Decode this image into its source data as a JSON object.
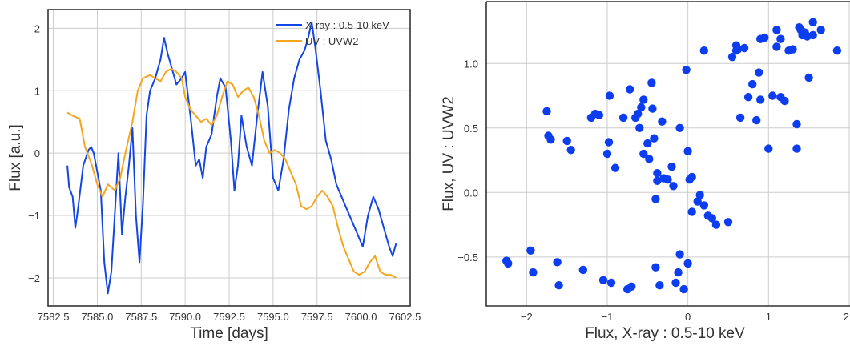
{
  "chart_data": [
    {
      "type": "line",
      "xlabel": "Time [days]",
      "ylabel": "Flux [a.u.]",
      "xlim": [
        7582.2,
        7602.8
      ],
      "ylim": [
        -2.45,
        2.3
      ],
      "xticks": [
        7582.5,
        7585.0,
        7587.5,
        7590.0,
        7592.5,
        7595.0,
        7597.5,
        7600.0,
        7602.5
      ],
      "xtick_labels": [
        "7582.5",
        "7585.0",
        "7587.5",
        "7590.0",
        "7592.5",
        "7595.0",
        "7597.5",
        "7600.0",
        "7602.5"
      ],
      "yticks": [
        -2,
        -1,
        0,
        1,
        2
      ],
      "ytick_labels": [
        "−2",
        "−1",
        "0",
        "1",
        "2"
      ],
      "grid": true,
      "legend": "top-right",
      "series": [
        {
          "name": "X-ray : 0.5-10 keV",
          "color": "#1446e6",
          "x": [
            7583.3,
            7583.4,
            7583.6,
            7583.75,
            7583.9,
            7584.2,
            7584.5,
            7584.65,
            7584.8,
            7585.0,
            7585.2,
            7585.4,
            7585.6,
            7585.8,
            7585.95,
            7586.2,
            7586.4,
            7586.6,
            7586.8,
            7587.0,
            7587.2,
            7587.4,
            7587.6,
            7587.8,
            7588.0,
            7588.3,
            7588.6,
            7588.8,
            7589.0,
            7589.3,
            7589.5,
            7589.8,
            7590.0,
            7590.3,
            7590.6,
            7590.8,
            7591.0,
            7591.2,
            7591.5,
            7591.8,
            7592.0,
            7592.3,
            7592.6,
            7592.8,
            7593.0,
            7593.2,
            7593.5,
            7593.8,
            7594.1,
            7594.4,
            7594.7,
            7595.0,
            7595.3,
            7595.6,
            7595.9,
            7596.2,
            7596.5,
            7596.8,
            7597.0,
            7597.2,
            7597.4,
            7597.7,
            7598.0,
            7598.3,
            7598.6,
            7598.9,
            7599.2,
            7599.5,
            7599.8,
            7600.1,
            7600.4,
            7600.7,
            7601.0,
            7601.3,
            7601.6,
            7601.8,
            7602.0
          ],
          "y": [
            -0.2,
            -0.55,
            -0.7,
            -1.2,
            -0.9,
            -0.2,
            0.05,
            0.1,
            0.0,
            -0.3,
            -0.6,
            -1.75,
            -2.25,
            -1.9,
            -1.2,
            0.0,
            -1.3,
            -0.7,
            -0.2,
            0.4,
            -1.0,
            -1.75,
            -0.8,
            0.6,
            1.0,
            1.2,
            1.5,
            1.85,
            1.6,
            1.3,
            1.1,
            1.2,
            1.3,
            0.6,
            -0.2,
            -0.1,
            -0.4,
            0.1,
            0.3,
            0.9,
            1.2,
            1.05,
            0.2,
            -0.6,
            -0.2,
            0.6,
            0.1,
            -0.2,
            0.6,
            1.3,
            0.75,
            -0.4,
            -0.6,
            -0.1,
            0.7,
            1.2,
            1.5,
            1.65,
            1.85,
            2.1,
            1.7,
            1.0,
            0.2,
            -0.1,
            -0.5,
            -0.7,
            -0.9,
            -1.1,
            -1.3,
            -1.5,
            -1.0,
            -0.7,
            -0.9,
            -1.2,
            -1.5,
            -1.65,
            -1.45
          ]
        },
        {
          "name": "UV : UVW2",
          "color": "#f5a61e",
          "x": [
            7583.3,
            7583.6,
            7584.0,
            7584.3,
            7584.7,
            7585.0,
            7585.3,
            7585.6,
            7586.0,
            7586.3,
            7586.6,
            7587.0,
            7587.3,
            7587.6,
            7588.0,
            7588.3,
            7588.6,
            7588.9,
            7589.2,
            7589.5,
            7589.8,
            7590.0,
            7590.3,
            7590.6,
            7590.9,
            7591.2,
            7591.5,
            7591.8,
            7592.1,
            7592.4,
            7592.7,
            7593.0,
            7593.3,
            7593.6,
            7593.9,
            7594.2,
            7594.5,
            7594.8,
            7595.1,
            7595.4,
            7595.7,
            7596.0,
            7596.3,
            7596.6,
            7596.9,
            7597.2,
            7597.5,
            7597.8,
            7598.1,
            7598.4,
            7598.7,
            7599.0,
            7599.3,
            7599.6,
            7599.9,
            7600.2,
            7600.5,
            7600.8,
            7601.1,
            7601.4,
            7601.7,
            7602.0
          ],
          "y": [
            0.65,
            0.6,
            0.55,
            0.1,
            -0.2,
            -0.5,
            -0.7,
            -0.5,
            -0.6,
            -0.4,
            0.0,
            0.5,
            1.0,
            1.2,
            1.25,
            1.2,
            1.15,
            1.3,
            1.35,
            1.3,
            1.2,
            0.9,
            0.7,
            0.6,
            0.5,
            0.55,
            0.45,
            0.6,
            0.9,
            1.15,
            1.1,
            0.9,
            1.0,
            1.05,
            0.9,
            0.6,
            0.2,
            0.0,
            0.05,
            0.0,
            -0.1,
            -0.3,
            -0.5,
            -0.85,
            -0.9,
            -0.85,
            -0.7,
            -0.6,
            -0.7,
            -0.85,
            -1.2,
            -1.5,
            -1.7,
            -1.9,
            -1.95,
            -1.9,
            -1.75,
            -1.65,
            -1.9,
            -1.95,
            -1.95,
            -2.0
          ]
        }
      ]
    },
    {
      "type": "scatter",
      "xlabel": "Flux, X-ray : 0.5-10 keV",
      "ylabel": "Flux, UV : UVW2",
      "xlim": [
        -2.5,
        2.05
      ],
      "ylim": [
        -0.88,
        1.48
      ],
      "xticks": [
        -2,
        -1,
        0,
        1,
        2
      ],
      "xtick_labels": [
        "−2",
        "−1",
        "0",
        "1",
        "2"
      ],
      "yticks": [
        -0.5,
        0.0,
        0.5,
        1.0
      ],
      "ytick_labels": [
        "−0.5",
        "0.0",
        "0.5",
        "1.0"
      ],
      "grid": true,
      "color": "#0c3ef0",
      "x": [
        -2.25,
        -2.23,
        -1.95,
        -1.92,
        -1.75,
        -1.73,
        -1.7,
        -1.62,
        -1.6,
        -1.5,
        -1.45,
        -1.3,
        -1.2,
        -1.15,
        -1.1,
        -1.05,
        -1.0,
        -0.98,
        -0.97,
        -0.95,
        -0.9,
        -0.8,
        -0.75,
        -0.72,
        -0.7,
        -0.65,
        -0.62,
        -0.6,
        -0.58,
        -0.55,
        -0.55,
        -0.5,
        -0.48,
        -0.45,
        -0.44,
        -0.42,
        -0.4,
        -0.4,
        -0.38,
        -0.38,
        -0.35,
        -0.32,
        -0.3,
        -0.25,
        -0.2,
        -0.18,
        -0.15,
        -0.12,
        -0.1,
        -0.1,
        -0.05,
        -0.02,
        0.0,
        0.0,
        0.02,
        0.05,
        0.05,
        0.12,
        0.15,
        0.2,
        0.2,
        0.25,
        0.3,
        0.35,
        0.5,
        0.55,
        0.6,
        0.62,
        0.6,
        0.65,
        0.7,
        0.75,
        0.8,
        0.85,
        0.88,
        0.9,
        0.95,
        1.0,
        1.05,
        1.1,
        1.15,
        1.2,
        1.25,
        1.3,
        1.35,
        1.4,
        1.42,
        1.45,
        1.48,
        1.55,
        1.65,
        1.85,
        0.9,
        1.1,
        1.15,
        1.38,
        1.35,
        1.5,
        1.55
      ],
      "y": [
        -0.53,
        -0.55,
        -0.45,
        -0.62,
        0.63,
        0.44,
        0.41,
        -0.54,
        -0.72,
        0.4,
        0.33,
        -0.6,
        0.58,
        0.61,
        0.6,
        -0.68,
        0.3,
        0.39,
        0.75,
        -0.7,
        0.19,
        0.58,
        -0.75,
        0.8,
        -0.73,
        0.58,
        0.61,
        0.5,
        0.66,
        0.3,
        0.72,
        0.38,
        0.26,
        0.85,
        0.65,
        0.42,
        -0.05,
        -0.58,
        0.09,
        0.15,
        -0.72,
        0.55,
        0.11,
        0.1,
        0.2,
        0.05,
        -0.7,
        -0.62,
        -0.48,
        0.5,
        -0.75,
        0.95,
        0.32,
        -0.55,
        0.1,
        0.12,
        -0.15,
        -0.07,
        -0.02,
        1.1,
        -0.1,
        -0.18,
        -0.2,
        -0.25,
        -0.23,
        1.05,
        1.1,
        1.11,
        1.14,
        0.58,
        1.12,
        0.74,
        0.84,
        0.56,
        0.93,
        1.19,
        1.2,
        0.34,
        0.75,
        1.13,
        0.74,
        0.71,
        1.1,
        1.11,
        0.34,
        1.26,
        1.22,
        1.24,
        1.21,
        1.22,
        1.26,
        1.1,
        0.72,
        1.26,
        1.19,
        1.28,
        0.53,
        0.89,
        1.32
      ],
      "x_raw_y_pairs_note": ""
    }
  ]
}
